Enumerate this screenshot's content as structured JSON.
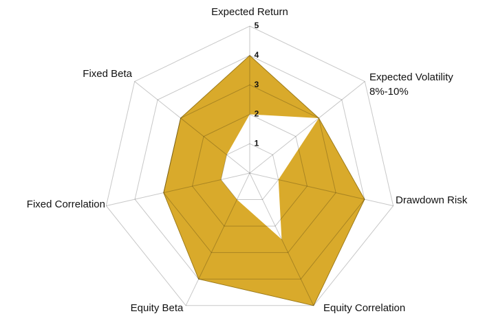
{
  "chart_data": {
    "type": "radar",
    "categories": [
      "Expected Return",
      "Expected Volatility\n8%-10%",
      "Drawdown Risk",
      "Equity Correlation",
      "Equity Beta",
      "Fixed Correlation",
      "Fixed Beta"
    ],
    "series": [
      {
        "color": "#d9aa2b",
        "values": [
          4,
          3,
          4,
          5,
          4,
          3,
          3
        ]
      },
      {
        "color": "#ffffff",
        "values": [
          2,
          3,
          1,
          2.5,
          1,
          1,
          1
        ]
      }
    ],
    "rlim": [
      0,
      5
    ],
    "rticks": [
      1,
      2,
      3,
      4,
      5
    ],
    "grid": true
  }
}
